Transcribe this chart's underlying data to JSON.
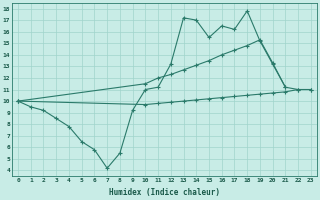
{
  "xlabel": "Humidex (Indice chaleur)",
  "background_color": "#c8ece6",
  "grid_color": "#a0d4cc",
  "line_color": "#2a7a6a",
  "x_values": [
    0,
    1,
    2,
    3,
    4,
    5,
    6,
    7,
    8,
    9,
    10,
    11,
    12,
    13,
    14,
    15,
    16,
    17,
    18,
    19,
    20,
    21,
    22,
    23
  ],
  "line1": [
    10.0,
    9.5,
    9.2,
    8.5,
    7.8,
    6.5,
    5.8,
    4.2,
    5.5,
    9.2,
    11.0,
    11.2,
    13.2,
    17.2,
    17.0,
    15.5,
    16.5,
    16.2,
    17.8,
    15.2,
    13.2,
    11.2,
    11.0,
    11.0
  ],
  "line2_x": [
    0,
    10,
    11,
    12,
    13,
    14,
    15,
    16,
    17,
    18,
    19,
    20,
    21
  ],
  "line2_y": [
    10.0,
    11.5,
    12.0,
    12.3,
    12.7,
    13.1,
    13.5,
    14.0,
    14.4,
    14.8,
    15.3,
    13.3,
    11.2
  ],
  "line3_x": [
    0,
    10,
    11,
    12,
    13,
    14,
    15,
    16,
    17,
    18,
    19,
    20,
    21,
    22,
    23
  ],
  "line3_y": [
    10.0,
    9.7,
    9.8,
    9.9,
    10.0,
    10.1,
    10.2,
    10.3,
    10.4,
    10.5,
    10.6,
    10.7,
    10.8,
    11.0,
    11.0
  ],
  "ylim_min": 3.5,
  "ylim_max": 18.5,
  "xlim_min": -0.5,
  "xlim_max": 23.5,
  "yticks": [
    4,
    5,
    6,
    7,
    8,
    9,
    10,
    11,
    12,
    13,
    14,
    15,
    16,
    17,
    18
  ],
  "xticks": [
    0,
    1,
    2,
    3,
    4,
    5,
    6,
    7,
    8,
    9,
    10,
    11,
    12,
    13,
    14,
    15,
    16,
    17,
    18,
    19,
    20,
    21,
    22,
    23
  ]
}
